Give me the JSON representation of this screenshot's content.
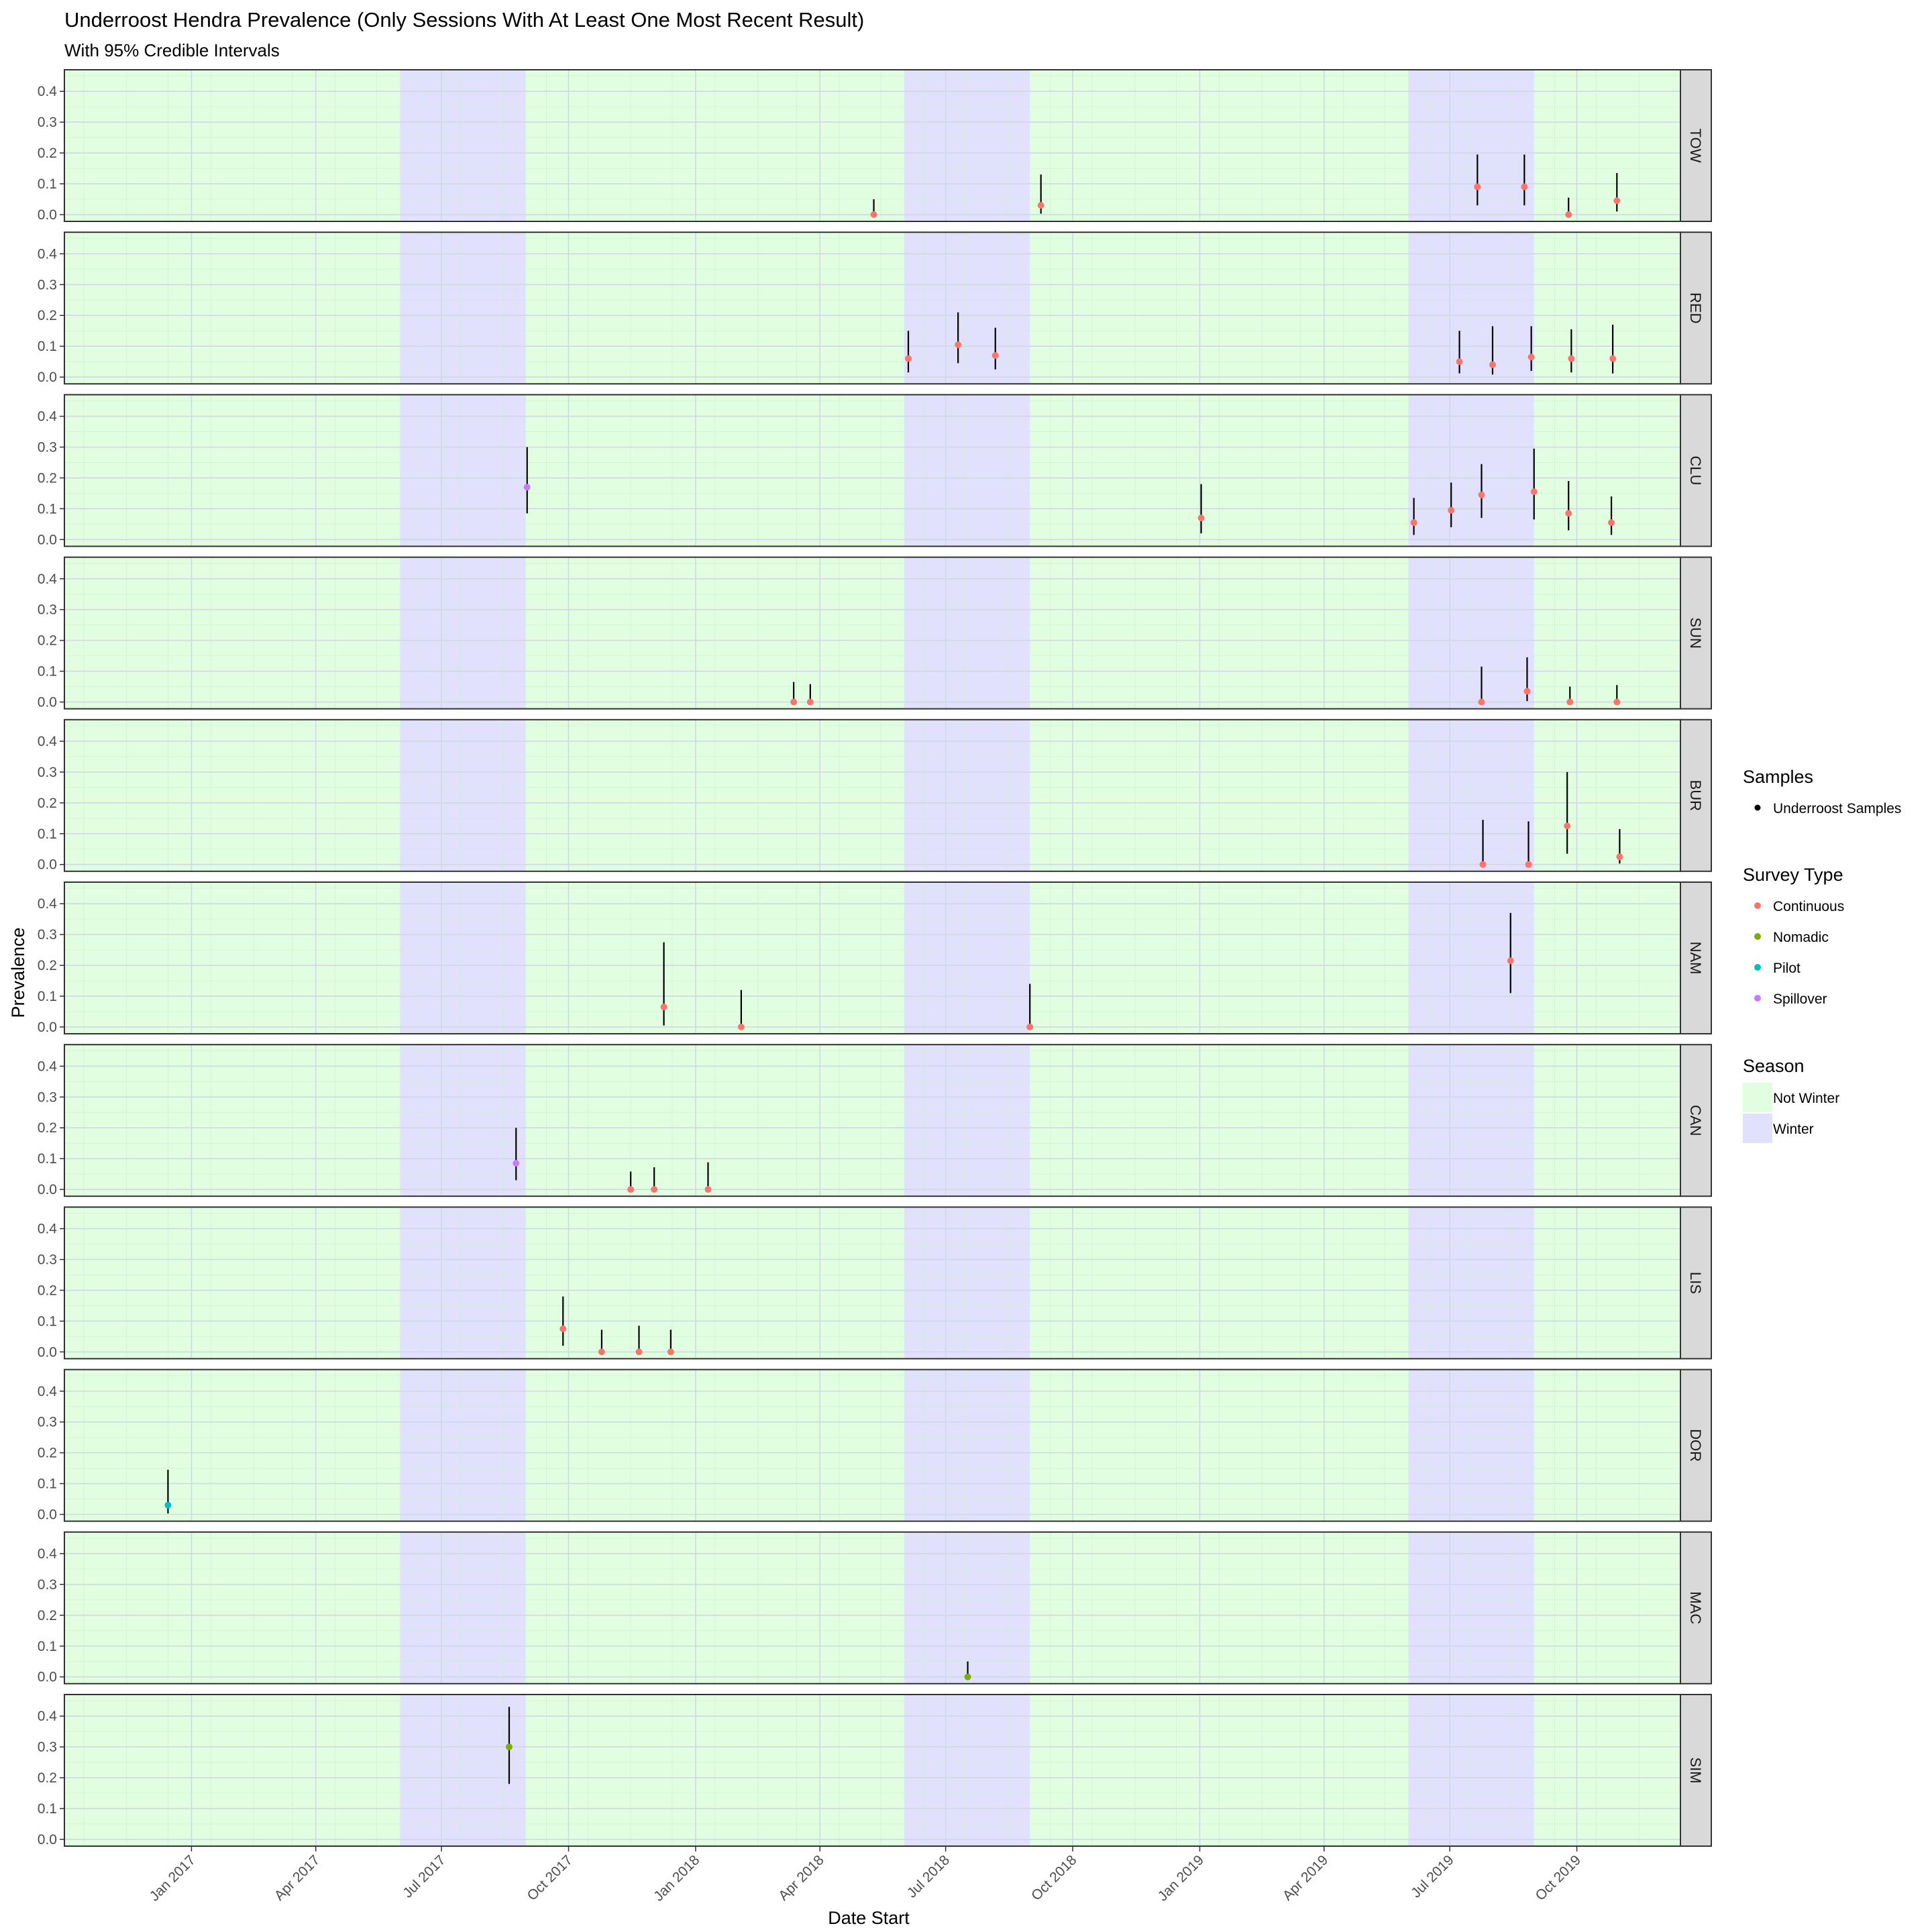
{
  "chart_data": {
    "type": "scatter",
    "title": "Underroost Hendra Prevalence (Only Sessions With At Least One Most Recent Result)",
    "subtitle": "With 95% Credible Intervals",
    "xlabel": "Date Start",
    "ylabel": "Prevalence",
    "xlim": [
      "2016-10-01",
      "2019-12-15"
    ],
    "ylim": [
      0,
      0.45
    ],
    "y_ticks": [
      0.0,
      0.1,
      0.2,
      0.3,
      0.4
    ],
    "y_tick_labels": [
      "0.0",
      "0.1",
      "0.2",
      "0.3",
      "0.4"
    ],
    "x_ticks": [
      "2017-01-01",
      "2017-04-01",
      "2017-07-01",
      "2017-10-01",
      "2018-01-01",
      "2018-04-01",
      "2018-07-01",
      "2018-10-01",
      "2019-01-01",
      "2019-04-01",
      "2019-07-01",
      "2019-10-01"
    ],
    "x_tick_labels": [
      "Jan 2017",
      "Apr 2017",
      "Jul 2017",
      "Oct 2017",
      "Jan 2018",
      "Apr 2018",
      "Jul 2018",
      "Oct 2018",
      "Jan 2019",
      "Apr 2019",
      "Jul 2019",
      "Oct 2019"
    ],
    "grid": true,
    "seasons": {
      "background": "Not Winter",
      "winter_periods": [
        [
          "2017-06-01",
          "2017-08-31"
        ],
        [
          "2018-06-01",
          "2018-08-31"
        ],
        [
          "2019-06-01",
          "2019-08-31"
        ]
      ]
    },
    "colors": {
      "Continuous": "#F8766D",
      "Nomadic": "#7CAE00",
      "Pilot": "#00BFC4",
      "Spillover": "#C77CFF",
      "Not Winter": "#E1FEE1",
      "Winter": "#E1E1FE",
      "panel_border": "#333333",
      "strip_fill": "#D9D9D9",
      "interval": "#000000"
    },
    "legend": {
      "position": "right",
      "samples": {
        "title": "Samples",
        "items": [
          "Underroost Samples"
        ]
      },
      "survey_type": {
        "title": "Survey Type",
        "items": [
          "Continuous",
          "Nomadic",
          "Pilot",
          "Spillover"
        ]
      },
      "season": {
        "title": "Season",
        "items": [
          "Not Winter",
          "Winter"
        ]
      }
    },
    "facets": [
      {
        "name": "TOW",
        "points": [
          {
            "date": "2018-05-10",
            "y": 0.0,
            "lo": 0.0,
            "hi": 0.05,
            "type": "Continuous"
          },
          {
            "date": "2018-09-08",
            "y": 0.03,
            "lo": 0.003,
            "hi": 0.13,
            "type": "Continuous"
          },
          {
            "date": "2019-07-21",
            "y": 0.09,
            "lo": 0.03,
            "hi": 0.195,
            "type": "Continuous"
          },
          {
            "date": "2019-08-24",
            "y": 0.09,
            "lo": 0.03,
            "hi": 0.195,
            "type": "Continuous"
          },
          {
            "date": "2019-09-25",
            "y": 0.0,
            "lo": 0.0,
            "hi": 0.055,
            "type": "Continuous"
          },
          {
            "date": "2019-10-30",
            "y": 0.045,
            "lo": 0.01,
            "hi": 0.135,
            "type": "Continuous"
          }
        ]
      },
      {
        "name": "RED",
        "points": [
          {
            "date": "2018-06-04",
            "y": 0.06,
            "lo": 0.015,
            "hi": 0.15,
            "type": "Continuous"
          },
          {
            "date": "2018-07-10",
            "y": 0.105,
            "lo": 0.045,
            "hi": 0.21,
            "type": "Continuous"
          },
          {
            "date": "2018-08-06",
            "y": 0.07,
            "lo": 0.025,
            "hi": 0.16,
            "type": "Continuous"
          },
          {
            "date": "2019-07-08",
            "y": 0.05,
            "lo": 0.012,
            "hi": 0.15,
            "type": "Continuous"
          },
          {
            "date": "2019-08-01",
            "y": 0.04,
            "lo": 0.008,
            "hi": 0.165,
            "type": "Continuous"
          },
          {
            "date": "2019-08-29",
            "y": 0.065,
            "lo": 0.02,
            "hi": 0.165,
            "type": "Continuous"
          },
          {
            "date": "2019-09-27",
            "y": 0.06,
            "lo": 0.015,
            "hi": 0.155,
            "type": "Continuous"
          },
          {
            "date": "2019-10-27",
            "y": 0.06,
            "lo": 0.012,
            "hi": 0.17,
            "type": "Continuous"
          }
        ]
      },
      {
        "name": "CLU",
        "points": [
          {
            "date": "2017-09-01",
            "y": 0.17,
            "lo": 0.085,
            "hi": 0.3,
            "type": "Spillover"
          },
          {
            "date": "2019-01-02",
            "y": 0.07,
            "lo": 0.02,
            "hi": 0.18,
            "type": "Continuous"
          },
          {
            "date": "2019-06-05",
            "y": 0.055,
            "lo": 0.015,
            "hi": 0.135,
            "type": "Continuous"
          },
          {
            "date": "2019-07-02",
            "y": 0.095,
            "lo": 0.04,
            "hi": 0.185,
            "type": "Continuous"
          },
          {
            "date": "2019-07-24",
            "y": 0.145,
            "lo": 0.07,
            "hi": 0.245,
            "type": "Continuous"
          },
          {
            "date": "2019-08-31",
            "y": 0.155,
            "lo": 0.065,
            "hi": 0.295,
            "type": "Continuous"
          },
          {
            "date": "2019-09-25",
            "y": 0.085,
            "lo": 0.03,
            "hi": 0.19,
            "type": "Continuous"
          },
          {
            "date": "2019-10-26",
            "y": 0.055,
            "lo": 0.015,
            "hi": 0.14,
            "type": "Continuous"
          }
        ]
      },
      {
        "name": "SUN",
        "points": [
          {
            "date": "2018-03-13",
            "y": 0.0,
            "lo": 0.0,
            "hi": 0.065,
            "type": "Continuous"
          },
          {
            "date": "2018-03-25",
            "y": 0.0,
            "lo": 0.0,
            "hi": 0.058,
            "type": "Continuous"
          },
          {
            "date": "2019-07-24",
            "y": 0.0,
            "lo": 0.0,
            "hi": 0.115,
            "type": "Continuous"
          },
          {
            "date": "2019-08-26",
            "y": 0.035,
            "lo": 0.003,
            "hi": 0.145,
            "type": "Continuous"
          },
          {
            "date": "2019-09-26",
            "y": 0.0,
            "lo": 0.0,
            "hi": 0.05,
            "type": "Continuous"
          },
          {
            "date": "2019-10-30",
            "y": 0.0,
            "lo": 0.0,
            "hi": 0.055,
            "type": "Continuous"
          }
        ]
      },
      {
        "name": "BUR",
        "points": [
          {
            "date": "2019-07-25",
            "y": 0.0,
            "lo": 0.0,
            "hi": 0.145,
            "type": "Continuous"
          },
          {
            "date": "2019-08-27",
            "y": 0.0,
            "lo": 0.0,
            "hi": 0.14,
            "type": "Continuous"
          },
          {
            "date": "2019-09-24",
            "y": 0.125,
            "lo": 0.035,
            "hi": 0.3,
            "type": "Continuous"
          },
          {
            "date": "2019-11-01",
            "y": 0.025,
            "lo": 0.003,
            "hi": 0.115,
            "type": "Continuous"
          }
        ]
      },
      {
        "name": "NAM",
        "points": [
          {
            "date": "2017-12-09",
            "y": 0.065,
            "lo": 0.005,
            "hi": 0.275,
            "type": "Continuous"
          },
          {
            "date": "2018-02-03",
            "y": 0.0,
            "lo": 0.0,
            "hi": 0.12,
            "type": "Continuous"
          },
          {
            "date": "2018-08-31",
            "y": 0.0,
            "lo": 0.0,
            "hi": 0.14,
            "type": "Continuous"
          },
          {
            "date": "2019-08-14",
            "y": 0.215,
            "lo": 0.11,
            "hi": 0.37,
            "type": "Continuous"
          }
        ]
      },
      {
        "name": "CAN",
        "points": [
          {
            "date": "2017-08-24",
            "y": 0.085,
            "lo": 0.03,
            "hi": 0.2,
            "type": "Spillover"
          },
          {
            "date": "2017-11-15",
            "y": 0.0,
            "lo": 0.0,
            "hi": 0.058,
            "type": "Continuous"
          },
          {
            "date": "2017-12-02",
            "y": 0.0,
            "lo": 0.0,
            "hi": 0.072,
            "type": "Continuous"
          },
          {
            "date": "2018-01-10",
            "y": 0.0,
            "lo": 0.0,
            "hi": 0.088,
            "type": "Continuous"
          }
        ]
      },
      {
        "name": "LIS",
        "points": [
          {
            "date": "2017-09-27",
            "y": 0.075,
            "lo": 0.02,
            "hi": 0.18,
            "type": "Continuous"
          },
          {
            "date": "2017-10-25",
            "y": 0.0,
            "lo": 0.0,
            "hi": 0.072,
            "type": "Continuous"
          },
          {
            "date": "2017-11-21",
            "y": 0.0,
            "lo": 0.0,
            "hi": 0.085,
            "type": "Continuous"
          },
          {
            "date": "2017-12-14",
            "y": 0.0,
            "lo": 0.0,
            "hi": 0.072,
            "type": "Continuous"
          }
        ]
      },
      {
        "name": "DOR",
        "points": [
          {
            "date": "2016-12-15",
            "y": 0.03,
            "lo": 0.003,
            "hi": 0.145,
            "type": "Pilot"
          }
        ]
      },
      {
        "name": "MAC",
        "points": [
          {
            "date": "2018-07-17",
            "y": 0.0,
            "lo": 0.0,
            "hi": 0.05,
            "type": "Nomadic"
          }
        ]
      },
      {
        "name": "SIM",
        "points": [
          {
            "date": "2017-08-19",
            "y": 0.3,
            "lo": 0.18,
            "hi": 0.43,
            "type": "Nomadic"
          }
        ]
      }
    ]
  }
}
